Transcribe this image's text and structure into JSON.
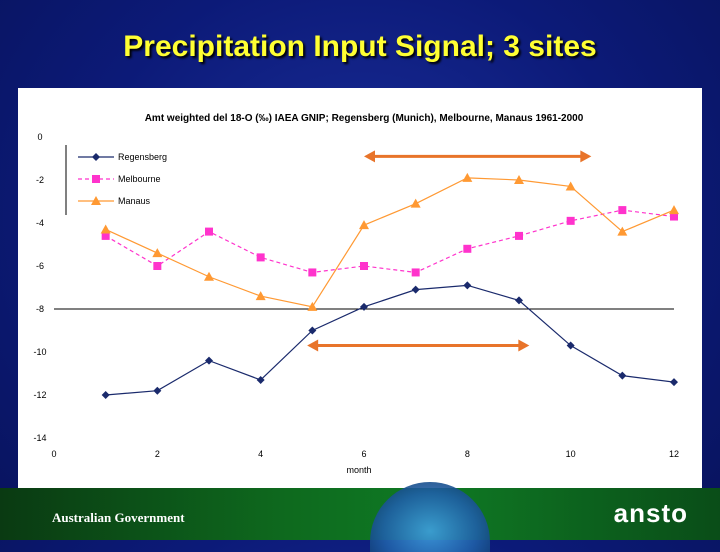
{
  "slide": {
    "title": "Precipitation Input Signal; 3 sites"
  },
  "footer": {
    "government": "Australian Government",
    "logo": "ansto"
  },
  "colors": {
    "regensberg": "#1a2a6c",
    "melbourne": "#ff33cc",
    "manaus": "#ff9933",
    "arrow": "#e8742a"
  },
  "chart_data": {
    "type": "line",
    "title": "Amt weighted del 18-O (‰) IAEA GNIP;  Regensberg (Munich), Melbourne, Manaus 1961-2000",
    "xlabel": "month",
    "ylabel": "",
    "xlim": [
      0,
      12
    ],
    "ylim": [
      -14,
      0
    ],
    "xticks": [
      0,
      2,
      4,
      6,
      8,
      10,
      12
    ],
    "yticks": [
      0,
      -2,
      -4,
      -6,
      -8,
      -10,
      -12,
      -14
    ],
    "legend": "top-left",
    "series": [
      {
        "name": "Regensberg",
        "marker": "diamond",
        "x": [
          1,
          2,
          3,
          4,
          5,
          6,
          7,
          8,
          9,
          10,
          11,
          12
        ],
        "values": [
          -12.0,
          -11.8,
          -10.4,
          -11.3,
          -9.0,
          -7.9,
          -7.1,
          -6.9,
          -7.6,
          -9.7,
          -11.1,
          -11.4
        ]
      },
      {
        "name": "Melbourne",
        "marker": "square",
        "x": [
          1,
          2,
          3,
          4,
          5,
          6,
          7,
          8,
          9,
          10,
          11,
          12
        ],
        "values": [
          -4.6,
          -6.0,
          -4.4,
          -5.6,
          -6.3,
          -6.0,
          -6.3,
          -5.2,
          -4.6,
          -3.9,
          -3.4,
          -3.7
        ]
      },
      {
        "name": "Manaus",
        "marker": "triangle",
        "x": [
          1,
          2,
          3,
          4,
          5,
          6,
          7,
          8,
          9,
          10,
          11,
          12
        ],
        "values": [
          -4.3,
          -5.4,
          -6.5,
          -7.4,
          -7.9,
          -4.1,
          -3.1,
          -1.9,
          -2.0,
          -2.3,
          -4.4,
          -3.4
        ]
      }
    ],
    "hlines": [
      -8
    ],
    "annotations": [
      {
        "type": "double-arrow",
        "x1": 6,
        "x2": 10.4,
        "y": -0.9
      },
      {
        "type": "double-arrow",
        "x1": 4.9,
        "x2": 9.2,
        "y": -9.7
      }
    ]
  }
}
